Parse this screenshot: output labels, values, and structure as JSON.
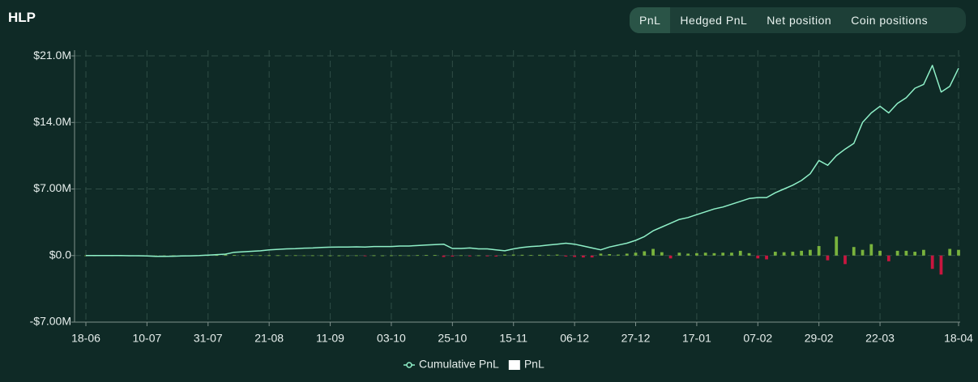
{
  "header": {
    "title": "HLP",
    "tabs": [
      "PnL",
      "Hedged PnL",
      "Net position",
      "Coin positions"
    ],
    "active_tab": 0
  },
  "chart_data": {
    "type": "combo",
    "categories": [
      "18-06",
      null,
      null,
      null,
      null,
      null,
      null,
      "10-07",
      null,
      null,
      null,
      null,
      null,
      null,
      "31-07",
      null,
      null,
      null,
      null,
      null,
      null,
      "21-08",
      null,
      null,
      null,
      null,
      null,
      null,
      "11-09",
      null,
      null,
      null,
      null,
      null,
      null,
      "03-10",
      null,
      null,
      null,
      null,
      null,
      null,
      "25-10",
      null,
      null,
      null,
      null,
      null,
      null,
      "15-11",
      null,
      null,
      null,
      null,
      null,
      null,
      "06-12",
      null,
      null,
      null,
      null,
      null,
      null,
      "27-12",
      null,
      null,
      null,
      null,
      null,
      null,
      "17-01",
      null,
      null,
      null,
      null,
      null,
      null,
      "07-02",
      null,
      null,
      null,
      null,
      null,
      null,
      "29-02",
      null,
      null,
      null,
      null,
      null,
      null,
      "22-03",
      null,
      null,
      null,
      null,
      null,
      null,
      null,
      null,
      "18-04"
    ],
    "series": [
      {
        "name": "Cumulative PnL",
        "type": "line",
        "color": "#8ff0c8",
        "values": [
          0,
          0,
          0,
          0,
          0,
          -0.02,
          -0.02,
          -0.05,
          -0.08,
          -0.08,
          -0.07,
          -0.05,
          -0.03,
          0,
          0.05,
          0.1,
          0.15,
          0.35,
          0.4,
          0.45,
          0.5,
          0.6,
          0.65,
          0.7,
          0.72,
          0.78,
          0.8,
          0.85,
          0.88,
          0.9,
          0.9,
          0.92,
          0.9,
          0.95,
          0.95,
          0.95,
          1.0,
          1.0,
          1.05,
          1.1,
          1.15,
          1.2,
          0.75,
          0.75,
          0.8,
          0.7,
          0.7,
          0.6,
          0.5,
          0.7,
          0.85,
          0.95,
          1.0,
          1.1,
          1.2,
          1.3,
          1.2,
          1.0,
          0.8,
          0.6,
          0.9,
          1.1,
          1.3,
          1.6,
          2.0,
          2.6,
          3.0,
          3.4,
          3.8,
          4.0,
          4.3,
          4.6,
          4.9,
          5.1,
          5.4,
          5.7,
          6.0,
          6.1,
          6.1,
          6.6,
          7.0,
          7.4,
          7.9,
          8.6,
          10.0,
          9.5,
          10.5,
          11.2,
          11.8,
          14.0,
          15.0,
          15.7,
          15.0,
          16.0,
          16.6,
          17.6,
          18.0,
          20.0,
          17.2,
          17.8,
          19.7
        ]
      },
      {
        "name": "PnL",
        "type": "bar",
        "color": "#ffffff",
        "positive_color": "#79b33d",
        "negative_color": "#c8163f",
        "values": [
          0.01,
          0,
          0.01,
          0,
          0,
          -0.01,
          0,
          -0.01,
          0,
          0,
          0.01,
          0.01,
          0.02,
          0.03,
          0.04,
          0.05,
          0.1,
          0.05,
          0.03,
          0.04,
          0.03,
          0.03,
          0.03,
          0.02,
          0.03,
          0.02,
          0.02,
          0.02,
          0.01,
          0.01,
          0.01,
          0.02,
          -0.01,
          0.02,
          0.01,
          0.02,
          0.03,
          0.02,
          0.04,
          0.05,
          0.05,
          -0.15,
          -0.1,
          0.03,
          -0.08,
          0.02,
          -0.08,
          -0.1,
          0.1,
          0.1,
          0.08,
          0.05,
          0.08,
          0.08,
          0.1,
          -0.1,
          -0.15,
          -0.2,
          -0.2,
          0.2,
          0.15,
          0.1,
          0.2,
          0.3,
          0.45,
          0.7,
          0.35,
          -0.3,
          0.3,
          0.2,
          0.25,
          0.3,
          0.25,
          0.3,
          0.3,
          0.5,
          0.25,
          -0.3,
          -0.4,
          0.4,
          0.35,
          0.4,
          0.5,
          0.6,
          1.0,
          -0.5,
          2.0,
          -0.9,
          0.9,
          0.6,
          1.2,
          0.5,
          -0.6,
          0.5,
          0.5,
          0.4,
          0.6,
          -1.4,
          -2.0,
          0.7,
          0.6
        ]
      }
    ],
    "ylim": [
      -7,
      21.6
    ],
    "yticks": [
      {
        "value": -7,
        "label": "-$7.00M"
      },
      {
        "value": 0,
        "label": "$0.0"
      },
      {
        "value": 7,
        "label": "$7.00M"
      },
      {
        "value": 14,
        "label": "$14.0M"
      },
      {
        "value": 21,
        "label": "$21.0M"
      }
    ],
    "grid": true,
    "legend": "bottom"
  }
}
